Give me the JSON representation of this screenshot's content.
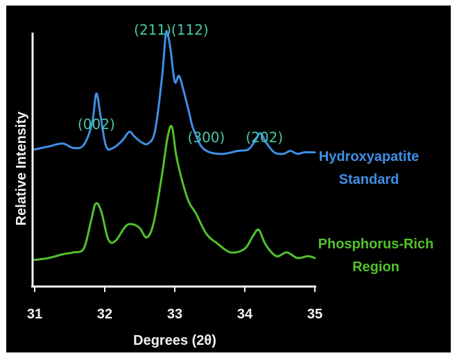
{
  "chart_data": {
    "type": "line",
    "xlabel": "Degrees (2θ)",
    "ylabel": "Relative Intensity",
    "xlim": [
      31,
      35
    ],
    "x_ticks": [
      "31",
      "32",
      "33",
      "34",
      "35"
    ],
    "grid": false,
    "legend_placement": "inline-right",
    "series": [
      {
        "name_lines": [
          "Hydroxyapatite",
          "Standard"
        ],
        "color": "#3f8fe6",
        "x": [
          31.0,
          31.2,
          31.4,
          31.55,
          31.7,
          31.82,
          31.88,
          31.94,
          32.02,
          32.12,
          32.25,
          32.35,
          32.42,
          32.52,
          32.62,
          32.72,
          32.82,
          32.87,
          32.9,
          32.94,
          33.0,
          33.06,
          33.12,
          33.2,
          33.25,
          33.3,
          33.38,
          33.5,
          33.7,
          33.9,
          34.05,
          34.15,
          34.22,
          34.3,
          34.42,
          34.55,
          34.65,
          34.75,
          34.85,
          35.0
        ],
        "y": [
          0.22,
          0.24,
          0.26,
          0.23,
          0.25,
          0.4,
          0.6,
          0.45,
          0.24,
          0.23,
          0.28,
          0.34,
          0.31,
          0.27,
          0.26,
          0.35,
          0.72,
          1.0,
          1.0,
          0.9,
          0.68,
          0.72,
          0.63,
          0.48,
          0.38,
          0.32,
          0.24,
          0.2,
          0.19,
          0.21,
          0.22,
          0.28,
          0.33,
          0.27,
          0.2,
          0.19,
          0.21,
          0.19,
          0.2,
          0.2
        ]
      },
      {
        "name_lines": [
          "Phosphorus-Rich",
          "Region"
        ],
        "color": "#52c22b",
        "x": [
          31.0,
          31.2,
          31.4,
          31.55,
          31.7,
          31.8,
          31.87,
          31.95,
          32.05,
          32.15,
          32.3,
          32.4,
          32.5,
          32.6,
          32.7,
          32.82,
          32.9,
          32.96,
          33.02,
          33.1,
          33.2,
          33.3,
          33.45,
          33.6,
          33.8,
          34.0,
          34.12,
          34.2,
          34.3,
          34.45,
          34.6,
          34.75,
          34.9,
          35.0
        ],
        "y": [
          0.02,
          0.03,
          0.05,
          0.06,
          0.08,
          0.22,
          0.32,
          0.28,
          0.13,
          0.12,
          0.2,
          0.21,
          0.19,
          0.14,
          0.22,
          0.48,
          0.68,
          0.73,
          0.58,
          0.45,
          0.33,
          0.27,
          0.16,
          0.11,
          0.06,
          0.08,
          0.15,
          0.18,
          0.1,
          0.04,
          0.06,
          0.03,
          0.04,
          0.03
        ]
      }
    ],
    "annotations": [
      {
        "text": "(002)",
        "x": 31.88
      },
      {
        "text": "(211)(112)",
        "x": 32.95
      },
      {
        "text": "(300)",
        "x": 33.45
      },
      {
        "text": "(202)",
        "x": 34.28
      }
    ]
  }
}
